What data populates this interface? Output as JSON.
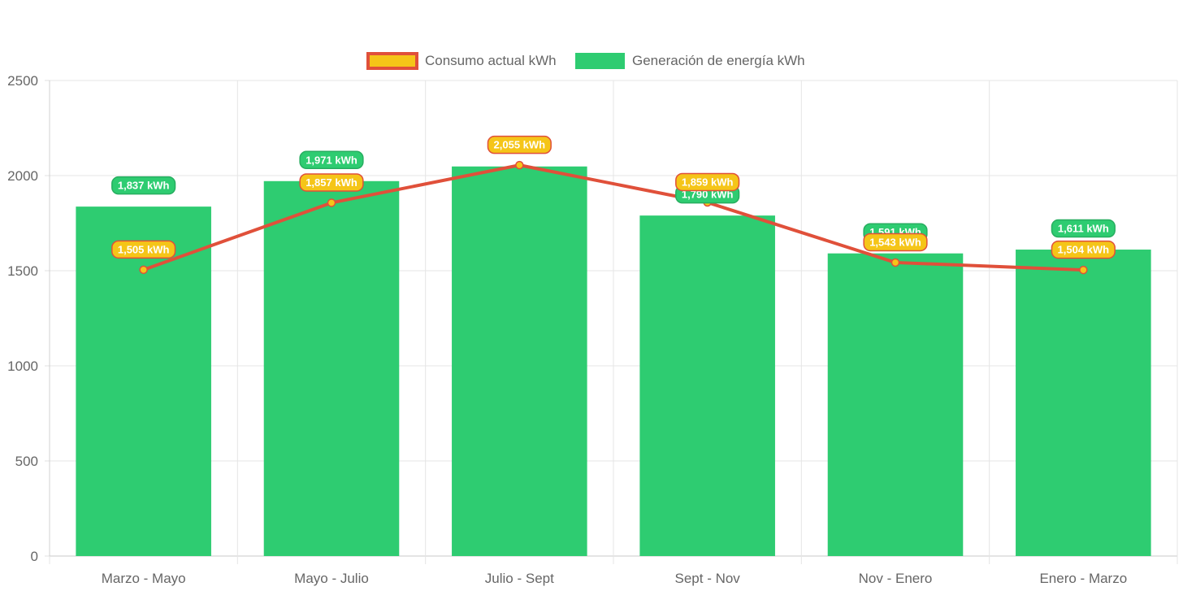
{
  "chart_data": {
    "type": "bar",
    "title": "",
    "xlabel": "",
    "ylabel": "",
    "ylim": [
      0,
      2500
    ],
    "yticks": [
      0,
      500,
      1000,
      1500,
      2000,
      2500
    ],
    "grid": true,
    "legend_position": "top-center",
    "categories": [
      "Marzo - Mayo",
      "Mayo - Julio",
      "Julio - Sept",
      "Sept - Nov",
      "Nov - Enero",
      "Enero - Marzo"
    ],
    "series": [
      {
        "name": "Consumo actual kWh",
        "kind": "line",
        "values": [
          1505,
          1857,
          2055,
          1859,
          1543,
          1504
        ],
        "labels": [
          "1,505 kWh",
          "1,857 kWh",
          "2,055 kWh",
          "1,859 kWh",
          "1,543 kWh",
          "1,504 kWh"
        ],
        "line_color": "#e0503a",
        "fill_color": "#f5c518"
      },
      {
        "name": "Generación de energía kWh",
        "kind": "bar",
        "values": [
          1837,
          1971,
          2048,
          1790,
          1591,
          1611
        ],
        "labels": [
          "1,837 kWh",
          "1,971 kWh",
          "",
          "1,790 kWh",
          "1,591 kWh",
          "1,611 kWh"
        ],
        "color": "#2ecc71",
        "label_color": "#27ae60"
      }
    ]
  }
}
